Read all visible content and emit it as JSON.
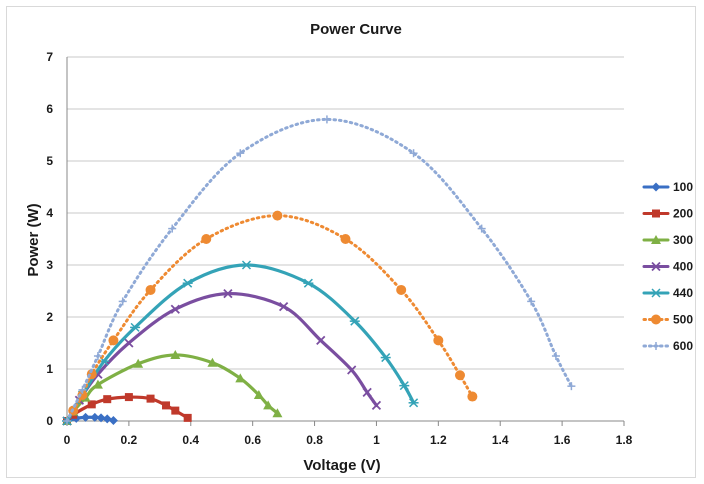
{
  "chart_data": {
    "type": "line",
    "title": "Power Curve",
    "xlabel": "Voltage (V)",
    "ylabel": "Power (W)",
    "xlim": [
      0,
      1.8
    ],
    "ylim": [
      0,
      7
    ],
    "xticks": [
      "0",
      "0.2",
      "0.4",
      "0.6",
      "0.8",
      "1",
      "1.2",
      "1.4",
      "1.6",
      "1.8"
    ],
    "yticks": [
      "0",
      "1",
      "2",
      "3",
      "4",
      "5",
      "6",
      "7"
    ],
    "grid": "horizontal",
    "legend_position": "right",
    "series": [
      {
        "name": "100",
        "color": "#3a6fc4",
        "marker": "diamond",
        "line": "solid",
        "x": [
          0.0,
          0.03,
          0.06,
          0.09,
          0.11,
          0.13,
          0.15
        ],
        "y": [
          0.0,
          0.05,
          0.07,
          0.07,
          0.06,
          0.04,
          0.01
        ]
      },
      {
        "name": "200",
        "color": "#c0392b",
        "marker": "square",
        "line": "solid",
        "x": [
          0.0,
          0.02,
          0.08,
          0.13,
          0.2,
          0.27,
          0.32,
          0.35,
          0.39
        ],
        "y": [
          0.0,
          0.12,
          0.32,
          0.42,
          0.46,
          0.43,
          0.3,
          0.2,
          0.06
        ]
      },
      {
        "name": "300",
        "color": "#7fb045",
        "marker": "triangle",
        "line": "solid",
        "x": [
          0.0,
          0.02,
          0.06,
          0.1,
          0.23,
          0.35,
          0.47,
          0.56,
          0.62,
          0.65,
          0.68
        ],
        "y": [
          0.0,
          0.18,
          0.45,
          0.7,
          1.1,
          1.27,
          1.12,
          0.82,
          0.5,
          0.3,
          0.15
        ]
      },
      {
        "name": "400",
        "color": "#7a4ea0",
        "marker": "x",
        "line": "solid",
        "x": [
          0.0,
          0.04,
          0.1,
          0.2,
          0.35,
          0.52,
          0.7,
          0.82,
          0.92,
          0.97,
          1.0
        ],
        "y": [
          0.0,
          0.4,
          0.9,
          1.5,
          2.15,
          2.45,
          2.2,
          1.55,
          0.98,
          0.55,
          0.3
        ]
      },
      {
        "name": "440",
        "color": "#34a3b7",
        "marker": "star",
        "line": "solid",
        "x": [
          0.0,
          0.05,
          0.12,
          0.22,
          0.39,
          0.58,
          0.78,
          0.93,
          1.03,
          1.09,
          1.12
        ],
        "y": [
          0.0,
          0.5,
          1.15,
          1.8,
          2.65,
          3.0,
          2.65,
          1.92,
          1.22,
          0.68,
          0.35
        ]
      },
      {
        "name": "500",
        "color": "#ee8a32",
        "marker": "circle",
        "line": "dotted",
        "x": [
          0.02,
          0.05,
          0.08,
          0.15,
          0.27,
          0.45,
          0.68,
          0.9,
          1.08,
          1.2,
          1.27,
          1.31
        ],
        "y": [
          0.2,
          0.5,
          0.9,
          1.55,
          2.52,
          3.5,
          3.95,
          3.5,
          2.52,
          1.55,
          0.88,
          0.47
        ]
      },
      {
        "name": "600",
        "color": "#8fa9d6",
        "marker": "plus",
        "line": "dotted",
        "x": [
          0.0,
          0.05,
          0.1,
          0.18,
          0.34,
          0.56,
          0.84,
          1.12,
          1.34,
          1.5,
          1.58,
          1.63
        ],
        "y": [
          0.0,
          0.6,
          1.25,
          2.3,
          3.7,
          5.15,
          5.8,
          5.15,
          3.7,
          2.3,
          1.25,
          0.67
        ]
      }
    ]
  }
}
